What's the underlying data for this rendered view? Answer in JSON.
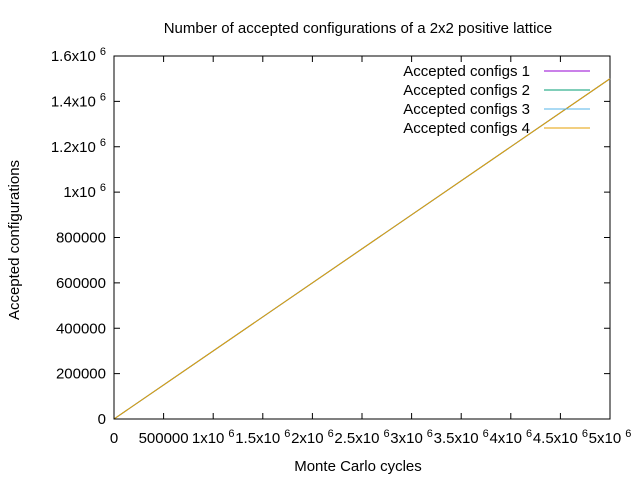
{
  "chart_data": {
    "type": "line",
    "title": "Number of accepted configurations of a 2x2 positive lattice",
    "xlabel": "Monte Carlo cycles",
    "ylabel": "Accepted configurations",
    "xlim": [
      0,
      5000000
    ],
    "ylim": [
      0,
      1600000
    ],
    "grid": false,
    "legend_position": "top-right",
    "x_ticks": [
      {
        "value": 0,
        "base": "0",
        "exp": ""
      },
      {
        "value": 500000,
        "base": "500000",
        "exp": ""
      },
      {
        "value": 1000000,
        "base": "1x10",
        "exp": "6"
      },
      {
        "value": 1500000,
        "base": "1.5x10",
        "exp": "6"
      },
      {
        "value": 2000000,
        "base": "2x10",
        "exp": "6"
      },
      {
        "value": 2500000,
        "base": "2.5x10",
        "exp": "6"
      },
      {
        "value": 3000000,
        "base": "3x10",
        "exp": "6"
      },
      {
        "value": 3500000,
        "base": "3.5x10",
        "exp": "6"
      },
      {
        "value": 4000000,
        "base": "4x10",
        "exp": "6"
      },
      {
        "value": 4500000,
        "base": "4.5x10",
        "exp": "6"
      },
      {
        "value": 5000000,
        "base": "5x10",
        "exp": "6"
      }
    ],
    "y_ticks": [
      {
        "value": 0,
        "base": "0",
        "exp": ""
      },
      {
        "value": 200000,
        "base": "200000",
        "exp": ""
      },
      {
        "value": 400000,
        "base": "400000",
        "exp": ""
      },
      {
        "value": 600000,
        "base": "600000",
        "exp": ""
      },
      {
        "value": 800000,
        "base": "800000",
        "exp": ""
      },
      {
        "value": 1000000,
        "base": "1x10",
        "exp": "6"
      },
      {
        "value": 1200000,
        "base": "1.2x10",
        "exp": "6"
      },
      {
        "value": 1400000,
        "base": "1.4x10",
        "exp": "6"
      },
      {
        "value": 1600000,
        "base": "1.6x10",
        "exp": "6"
      }
    ],
    "series": [
      {
        "name": "Accepted configs 1",
        "color": "#9400d3",
        "x": [
          0,
          5000000
        ],
        "y": [
          0,
          1500000
        ]
      },
      {
        "name": "Accepted configs 2",
        "color": "#009e73",
        "x": [
          0,
          5000000
        ],
        "y": [
          0,
          1500000
        ]
      },
      {
        "name": "Accepted configs 3",
        "color": "#56b4e9",
        "x": [
          0,
          5000000
        ],
        "y": [
          0,
          1500000
        ]
      },
      {
        "name": "Accepted configs 4",
        "color": "#e69f00",
        "x": [
          0,
          5000000
        ],
        "y": [
          0,
          1500000
        ]
      }
    ]
  }
}
